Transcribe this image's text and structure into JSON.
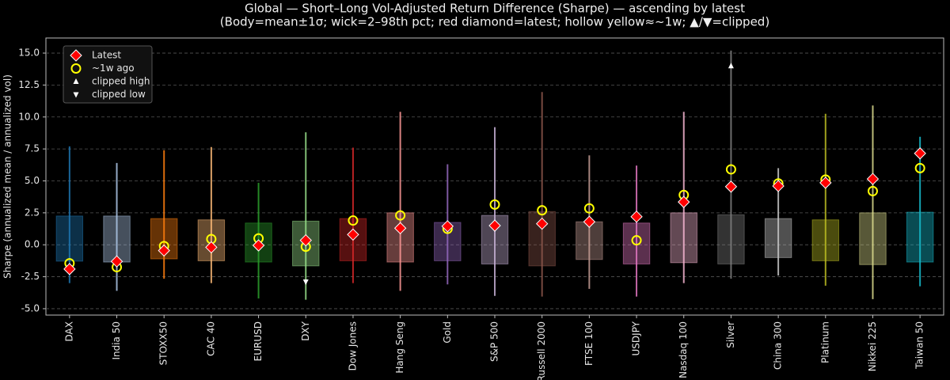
{
  "chart_data": {
    "type": "range",
    "title": "Global — Short–Long Vol-Adjusted Return Difference (Sharpe) — ascending by latest",
    "subtitle": "(Body=mean±1σ; wick=2–98th pct; red diamond=latest; hollow yellow≈~1w; ▲/▼=clipped)",
    "y_label": "Sharpe (annualized mean / annualized vol)",
    "categories": [
      "DAX",
      "India 50",
      "STOXX50",
      "CAC 40",
      "EURUSD",
      "DXY",
      "Dow Jones",
      "Hang Seng",
      "Gold",
      "S&P 500",
      "Russell 2000",
      "FTSE 100",
      "USDJPY",
      "Nasdaq 100",
      "Silver",
      "China 300",
      "Platinum",
      "Nikkei 225",
      "Taiwan 50"
    ],
    "colors": [
      "#1f77b4",
      "#aec7e8",
      "#ff7f0e",
      "#ffbb78",
      "#2ca02c",
      "#98df8a",
      "#d62728",
      "#ff9896",
      "#9467bd",
      "#c5b0d5",
      "#8c564b",
      "#c49c94",
      "#e377c2",
      "#f7b6d2",
      "#7f7f7f",
      "#c7c7c7",
      "#bcbd22",
      "#dbdb8d",
      "#17becf"
    ],
    "body_low": [
      -1.28,
      -1.35,
      -1.1,
      -1.25,
      -1.35,
      -1.65,
      -1.25,
      -1.35,
      -1.25,
      -1.5,
      -1.65,
      -1.15,
      -1.5,
      -1.4,
      -1.5,
      -1.0,
      -1.25,
      -1.55,
      -1.35
    ],
    "body_high": [
      2.25,
      2.25,
      2.05,
      1.95,
      1.7,
      1.85,
      2.05,
      2.5,
      1.75,
      2.3,
      2.6,
      1.8,
      1.7,
      2.5,
      2.35,
      2.05,
      1.95,
      2.5,
      2.55
    ],
    "wick_low": [
      -3.0,
      -3.6,
      -2.65,
      -3.0,
      -4.2,
      -4.3,
      -3.0,
      -3.6,
      -3.1,
      -4.0,
      -4.05,
      -3.45,
      -4.05,
      -3.0,
      -2.65,
      -2.4,
      -3.2,
      -4.25,
      -3.25
    ],
    "wick_high": [
      7.7,
      6.4,
      7.4,
      7.65,
      4.85,
      8.8,
      7.6,
      10.4,
      6.3,
      9.2,
      11.95,
      7.0,
      6.2,
      10.4,
      15.2,
      6.0,
      10.25,
      10.9,
      8.45
    ],
    "series": [
      {
        "name": "Latest",
        "color": "#ff0000",
        "marker": "diamond",
        "values": [
          -1.9,
          -1.3,
          -0.45,
          -0.2,
          -0.05,
          0.35,
          0.8,
          1.3,
          1.45,
          1.5,
          1.65,
          1.8,
          2.2,
          3.35,
          4.55,
          4.6,
          4.85,
          5.15,
          7.15
        ]
      },
      {
        "name": "~1w ago",
        "color": "#ffff00",
        "marker": "circle",
        "values": [
          -1.45,
          -1.75,
          -0.1,
          0.45,
          0.5,
          -0.15,
          1.9,
          2.3,
          1.25,
          3.15,
          2.7,
          2.85,
          0.35,
          3.9,
          5.9,
          4.8,
          5.1,
          4.2,
          6.0
        ]
      },
      {
        "name": "clipped high",
        "color": "#ffffff",
        "marker": "triangle-up",
        "values": [
          null,
          null,
          null,
          null,
          null,
          null,
          null,
          null,
          null,
          null,
          null,
          null,
          null,
          null,
          14.0,
          null,
          null,
          null,
          null
        ]
      },
      {
        "name": "clipped low",
        "color": "#ffffff",
        "marker": "triangle-down",
        "values": [
          null,
          null,
          null,
          null,
          null,
          -2.9,
          null,
          null,
          null,
          null,
          null,
          null,
          null,
          null,
          null,
          null,
          null,
          null,
          null
        ]
      }
    ],
    "ylim": [
      -5.5,
      16.18
    ],
    "yticks": [
      {
        "value": -5,
        "label": "-5.0"
      },
      {
        "value": -2.5,
        "label": "-2.5"
      },
      {
        "value": 0,
        "label": "0.0"
      },
      {
        "value": 2.5,
        "label": "2.5"
      },
      {
        "value": 5,
        "label": "5.0"
      },
      {
        "value": 7.5,
        "label": "7.5"
      },
      {
        "value": 10,
        "label": "10.0"
      },
      {
        "value": 12.5,
        "label": "12.5"
      },
      {
        "value": 15,
        "label": "15.0"
      }
    ],
    "grid": true,
    "legend": "upper-left"
  }
}
